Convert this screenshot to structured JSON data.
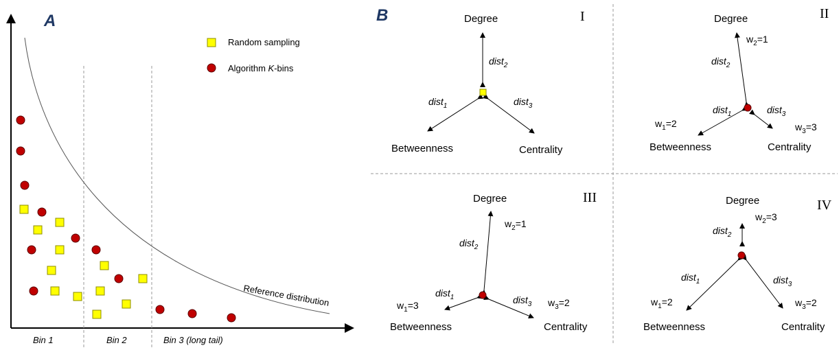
{
  "colors": {
    "random_marker": "#ffff00",
    "random_marker_stroke": "#8c8c00",
    "kbins_marker": "#c00000",
    "kbins_marker_stroke": "#5a0000",
    "panel_letter": "#1f3864",
    "divider": "#999999"
  },
  "panel_a": {
    "label": "A",
    "legend": {
      "random": "Random sampling",
      "kbins_prefix": "Algorithm ",
      "kbins_k": "K",
      "kbins_suffix": "-bins"
    },
    "curve_label": "Reference distribution",
    "bins": [
      "Bin 1",
      "Bin 2",
      "Bin 3 (long tail)"
    ]
  },
  "panel_b": {
    "label": "B",
    "nodes": {
      "degree": "Degree",
      "betweenness": "Betweenness",
      "centrality": "Centrality"
    },
    "dist": {
      "word": "dist",
      "sub1": "1",
      "sub2": "2",
      "sub3": "3"
    },
    "w": {
      "prefix": "w",
      "eq": "="
    },
    "quadrants": [
      {
        "roman": "I",
        "marker": "random",
        "weights": null
      },
      {
        "roman": "II",
        "marker": "kbins",
        "weights": {
          "w1": "2",
          "w2": "1",
          "w3": "3"
        }
      },
      {
        "roman": "III",
        "marker": "kbins",
        "weights": {
          "w1": "3",
          "w2": "1",
          "w3": "2"
        }
      },
      {
        "roman": "IV",
        "marker": "kbins",
        "weights": {
          "w1": "2",
          "w2": "3",
          "w3": "2"
        }
      }
    ]
  }
}
